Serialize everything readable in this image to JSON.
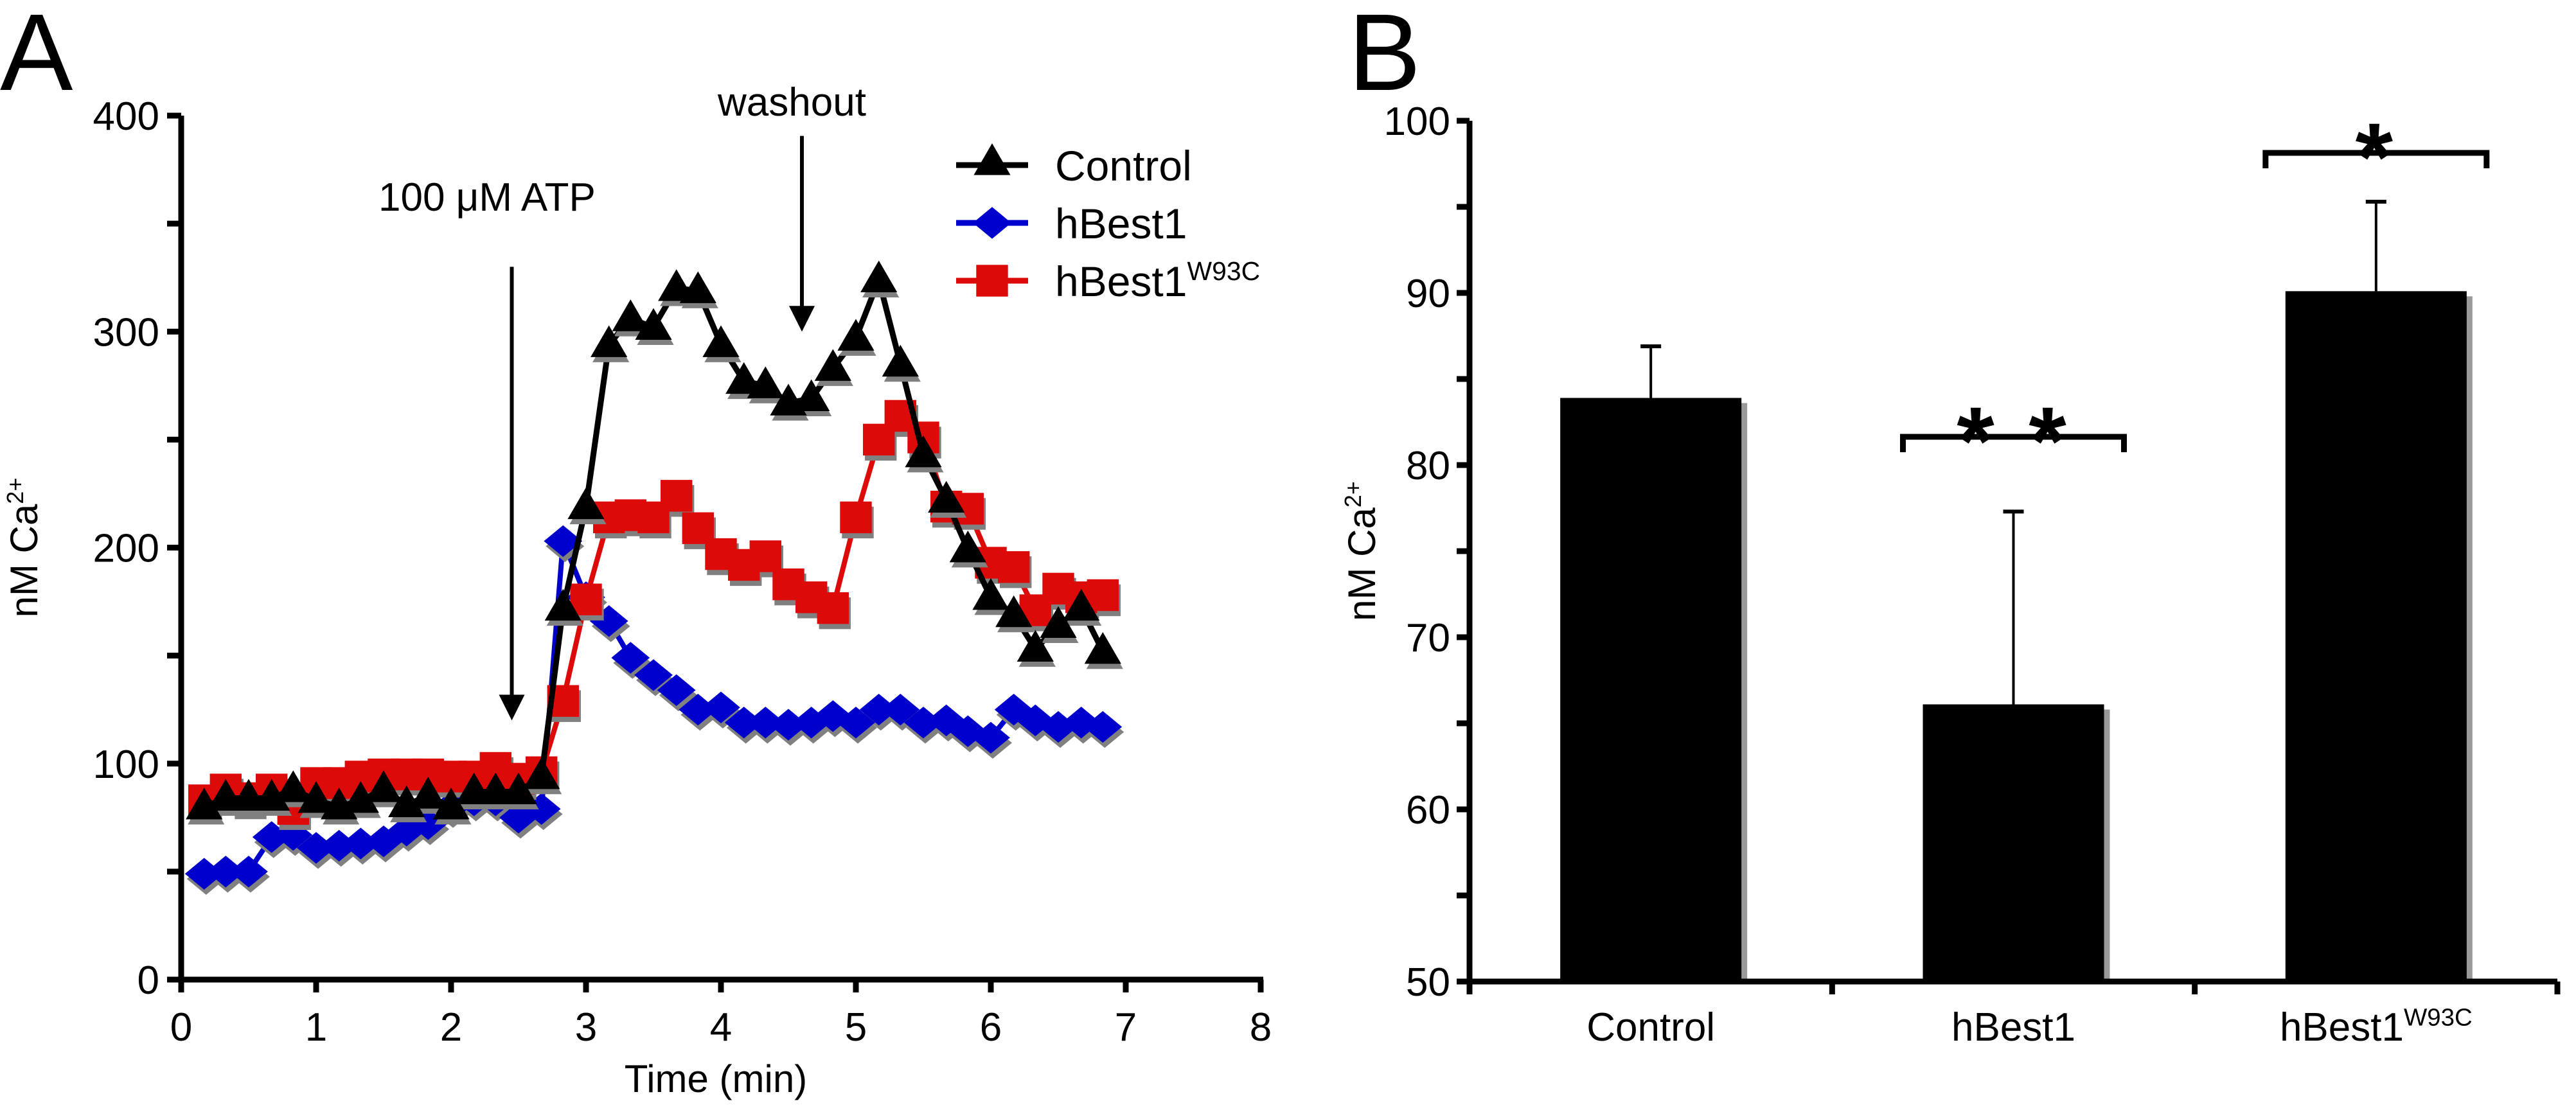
{
  "chart_data": [
    {
      "panel": "A",
      "type": "line",
      "title": "",
      "xlabel": "Time (min)",
      "ylabel": "nM Ca",
      "ylabel_sup": "2+",
      "xlim": [
        0,
        8
      ],
      "ylim": [
        0,
        400
      ],
      "xticks": [
        0,
        1,
        2,
        3,
        4,
        5,
        6,
        7,
        8
      ],
      "yticks": [
        0,
        100,
        200,
        300,
        400
      ],
      "yminor_ticks": [
        50,
        150,
        250,
        350
      ],
      "grid": false,
      "legend_position": "top-right",
      "annotations": [
        {
          "text": "100 μM ATP",
          "x": 2.45,
          "y_from": 330,
          "y_to": 120
        },
        {
          "text": "washout",
          "x": 4.6,
          "y_from": 390,
          "y_to": 300
        }
      ],
      "x": [
        0.17,
        0.33,
        0.5,
        0.67,
        0.83,
        1.0,
        1.17,
        1.33,
        1.5,
        1.67,
        1.83,
        2.0,
        2.17,
        2.33,
        2.5,
        2.67,
        2.83,
        3.0,
        3.17,
        3.33,
        3.5,
        3.67,
        3.83,
        4.0,
        4.17,
        4.33,
        4.5,
        4.67,
        4.83,
        5.0,
        5.17,
        5.33,
        5.5,
        5.67,
        5.83,
        6.0,
        6.17,
        6.33,
        6.5,
        6.67,
        6.83
      ],
      "series": [
        {
          "name": "Control",
          "label": "Control",
          "label_sup": "",
          "color": "#000000",
          "marker": "triangle",
          "values": [
            80,
            84,
            84,
            84,
            88,
            83,
            80,
            83,
            88,
            81,
            85,
            80,
            87,
            87,
            87,
            94,
            172,
            219,
            294,
            306,
            302,
            320,
            319,
            294,
            277,
            275,
            267,
            269,
            283,
            297,
            324,
            285,
            243,
            222,
            199,
            177,
            169,
            153,
            164,
            172,
            152
          ]
        },
        {
          "name": "hBest1",
          "label": "hBest1",
          "label_sup": "",
          "color": "#0000cc",
          "marker": "diamond",
          "values": [
            49,
            50,
            50,
            66,
            67,
            61,
            62,
            63,
            64,
            69,
            72,
            80,
            83,
            83,
            75,
            79,
            203,
            177,
            166,
            149,
            141,
            134,
            125,
            126,
            119,
            119,
            118,
            119,
            122,
            119,
            125,
            125,
            119,
            120,
            115,
            112,
            125,
            120,
            117,
            119,
            117
          ]
        },
        {
          "name": "hBest1W93C",
          "label": "hBest1",
          "label_sup": "W93C",
          "color": "#dd0a0a",
          "marker": "square",
          "values": [
            83,
            88,
            84,
            88,
            79,
            91,
            91,
            94,
            95,
            95,
            95,
            94,
            94,
            98,
            93,
            96,
            129,
            176,
            214,
            215,
            214,
            224,
            209,
            197,
            192,
            196,
            183,
            177,
            172,
            214,
            250,
            261,
            251,
            219,
            218,
            193,
            191,
            171,
            181,
            177,
            178
          ]
        }
      ]
    },
    {
      "panel": "B",
      "type": "bar",
      "title": "",
      "xlabel": "",
      "ylabel": "nM Ca",
      "ylabel_sup": "2+",
      "ylim": [
        50,
        100
      ],
      "yticks": [
        50,
        60,
        70,
        80,
        90,
        100
      ],
      "yminor_ticks": [
        55,
        65,
        75,
        85,
        95
      ],
      "grid": false,
      "categories": [
        {
          "label": "Control",
          "sup": ""
        },
        {
          "label": "hBest1",
          "sup": ""
        },
        {
          "label": "hBest1",
          "sup": "W93C"
        }
      ],
      "values": [
        83.9,
        66.1,
        90.1
      ],
      "error_upper": [
        86.9,
        77.3,
        95.3
      ],
      "bar_color": "#000000",
      "significance": [
        {
          "category_index": 1,
          "text": "* *"
        },
        {
          "category_index": 2,
          "text": "*"
        }
      ]
    }
  ],
  "panel_labels": [
    "A",
    "B"
  ]
}
